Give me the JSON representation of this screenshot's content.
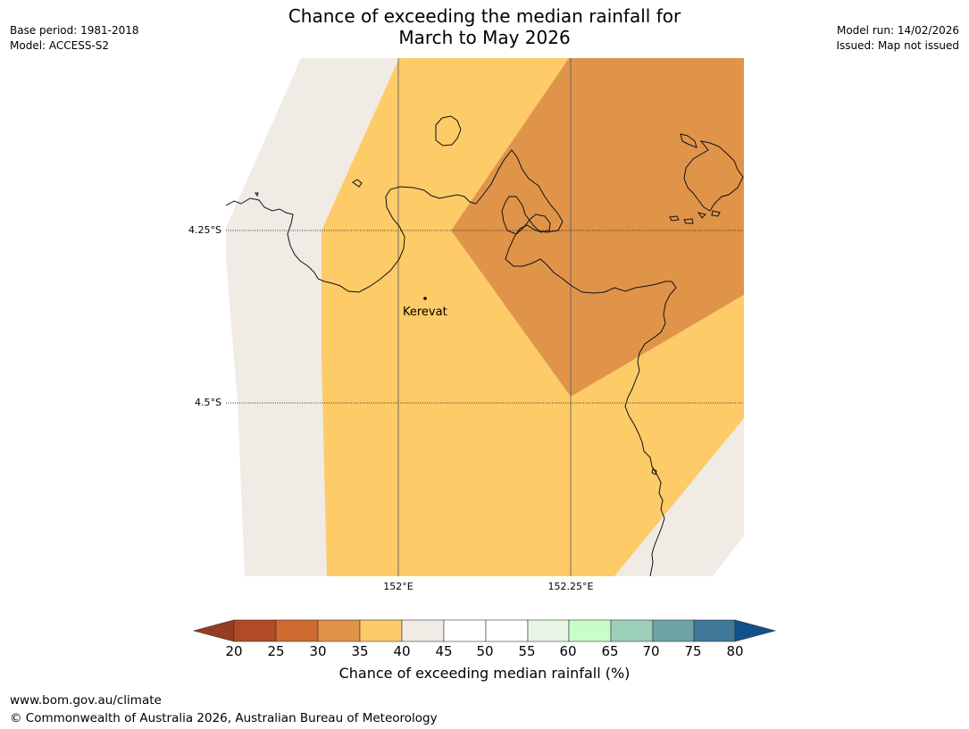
{
  "header": {
    "title_line1": "Chance of exceeding the median rainfall for",
    "title_line2": "March to May 2026",
    "base_period": "Base period: 1981-2018",
    "model": "Model: ACCESS-S2",
    "model_run": "Model run: 14/02/2026",
    "issued": "Issued: Map not issued"
  },
  "map": {
    "place_label": "Kerevat",
    "lat_labels": [
      "4.25°S",
      "4.5°S"
    ],
    "lon_labels": [
      "152°E",
      "152.25°E"
    ],
    "category_colors": {
      "30-35": "#e0944a",
      "35-40": "#fdcb68",
      "40-45": "#f0ebe5"
    }
  },
  "colorbar": {
    "label": "Chance of exceeding median rainfall (%)",
    "ticks": [
      "20",
      "25",
      "30",
      "35",
      "40",
      "45",
      "50",
      "55",
      "60",
      "65",
      "70",
      "75",
      "80"
    ],
    "under_color": "#973b21",
    "over_color": "#11508c",
    "colors": [
      "#b14a26",
      "#cf6a31",
      "#e0944a",
      "#fdcb68",
      "#f0ebe5",
      "#ffffff",
      "#ffffff",
      "#e8f6e6",
      "#c7fdc7",
      "#9bcfb8",
      "#6ea3a4",
      "#3f7899"
    ]
  },
  "footer": {
    "url": "www.bom.gov.au/climate",
    "copyright": "© Commonwealth of Australia 2026, Australian Bureau of Meteorology"
  }
}
